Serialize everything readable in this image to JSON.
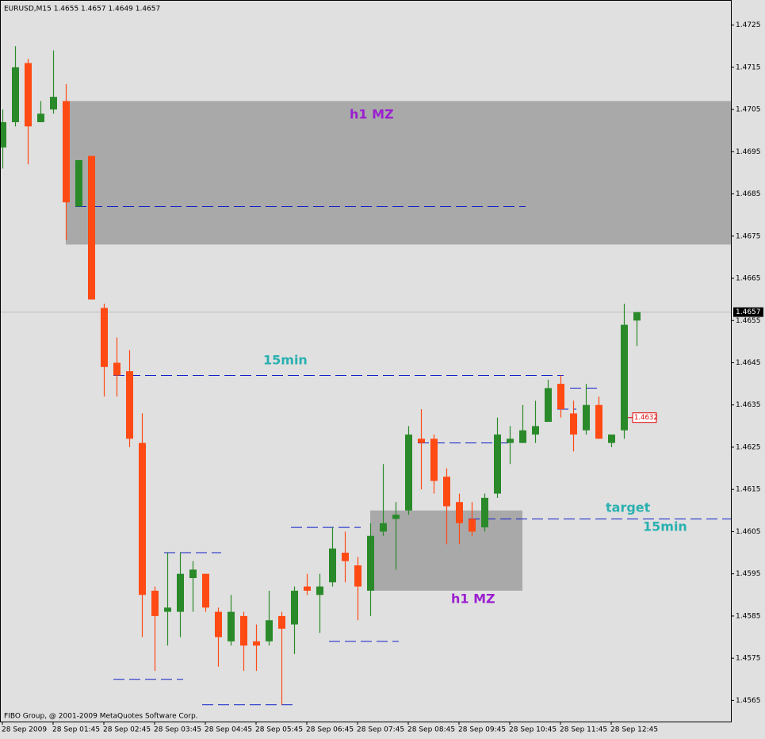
{
  "chart_data": {
    "type": "candlestick",
    "title": "EURUSD,M15  1.4655 1.4657 1.4649 1.4657",
    "copyright": "FIBO Group, @ 2001-2009 MetaQuotes Software Corp.",
    "categories": [
      "28 Sep 2009",
      null,
      null,
      null,
      "28 Sep 01:45",
      null,
      null,
      null,
      "28 Sep 02:45",
      null,
      null,
      null,
      "28 Sep 03:45",
      null,
      null,
      null,
      "28 Sep 04:45",
      null,
      null,
      null,
      "28 Sep 05:45",
      null,
      null,
      null,
      "28 Sep 06:45",
      null,
      null,
      null,
      "28 Sep 07:45",
      null,
      null,
      null,
      "28 Sep 08:45",
      null,
      null,
      null,
      "28 Sep 09:45",
      null,
      null,
      null,
      "28 Sep 10:45",
      null,
      null,
      null,
      "28 Sep 11:45",
      null,
      null,
      null,
      "28 Sep 12:45",
      null,
      null
    ],
    "open": [
      1.4696,
      1.4702,
      1.4716,
      1.4702,
      1.4705,
      1.4707,
      1.4682,
      1.4694,
      1.4658,
      1.4645,
      1.4643,
      1.4626,
      1.4591,
      1.4586,
      1.4586,
      1.4594,
      1.4595,
      1.4586,
      1.4579,
      1.4585,
      1.4579,
      1.4579,
      1.4585,
      1.4583,
      1.4592,
      1.459,
      1.4593,
      1.46,
      1.4597,
      1.4591,
      1.4605,
      1.4608,
      1.461,
      1.4627,
      1.4627,
      1.4618,
      1.4612,
      1.4608,
      1.4606,
      1.4614,
      1.4626,
      1.4626,
      1.4628,
      1.4631,
      1.464,
      1.4633,
      1.4629,
      1.4635,
      1.4626,
      1.4629,
      1.4655
    ],
    "high": [
      1.4705,
      1.472,
      1.4717,
      1.4707,
      1.4719,
      1.4711,
      1.4693,
      1.4694,
      1.4659,
      1.4651,
      1.4648,
      1.4633,
      1.4592,
      1.46,
      1.46,
      1.4598,
      1.4595,
      1.4587,
      1.459,
      1.4586,
      1.4583,
      1.4591,
      1.4586,
      1.4592,
      1.4595,
      1.4595,
      1.4606,
      1.4605,
      1.4599,
      1.4607,
      1.4621,
      1.4612,
      1.463,
      1.4634,
      1.4628,
      1.462,
      1.4614,
      1.4612,
      1.4614,
      1.4632,
      1.463,
      1.4635,
      1.4636,
      1.4641,
      1.4642,
      1.4636,
      1.464,
      1.4637,
      1.4628,
      1.4659,
      1.4657
    ],
    "low": [
      1.4691,
      1.4701,
      1.4692,
      1.4702,
      1.4704,
      1.4674,
      1.4682,
      1.466,
      1.4637,
      1.4637,
      1.4625,
      1.458,
      1.4572,
      1.4578,
      1.458,
      1.4586,
      1.4586,
      1.4573,
      1.4578,
      1.4572,
      1.4572,
      1.4578,
      1.4564,
      1.4576,
      1.459,
      1.4581,
      1.4592,
      1.4593,
      1.4584,
      1.4585,
      1.4604,
      1.4596,
      1.4609,
      1.4615,
      1.4614,
      1.4602,
      1.4602,
      1.4604,
      1.4605,
      1.4613,
      1.4621,
      1.4626,
      1.4626,
      1.4631,
      1.4632,
      1.4624,
      1.4628,
      1.4627,
      1.4625,
      1.4627,
      1.4649
    ],
    "close": [
      1.4702,
      1.4715,
      1.4701,
      1.4704,
      1.4708,
      1.4683,
      1.4693,
      1.466,
      1.4644,
      1.4642,
      1.4627,
      1.459,
      1.4585,
      1.4587,
      1.4595,
      1.4596,
      1.4587,
      1.458,
      1.4586,
      1.4578,
      1.4578,
      1.4584,
      1.4582,
      1.4591,
      1.4591,
      1.4592,
      1.4601,
      1.4598,
      1.4592,
      1.4604,
      1.4607,
      1.4609,
      1.4628,
      1.4626,
      1.4617,
      1.4611,
      1.4607,
      1.4605,
      1.4613,
      1.4628,
      1.4627,
      1.4629,
      1.463,
      1.4639,
      1.4634,
      1.4628,
      1.4635,
      1.4627,
      1.4628,
      1.4654,
      1.4657
    ],
    "up_color": "#2a8a2a",
    "down_color": "#ff4a14",
    "ylim": [
      1.456,
      1.473
    ],
    "yticks": [
      1.4725,
      1.4715,
      1.4705,
      1.4695,
      1.4685,
      1.4675,
      1.4665,
      1.4655,
      1.4645,
      1.4635,
      1.4625,
      1.4615,
      1.4605,
      1.4595,
      1.4585,
      1.4575,
      1.4565
    ],
    "current_price": 1.4657,
    "alert_level": 1.4632,
    "zones": [
      {
        "top": 1.4707,
        "bottom": 1.4673,
        "start": 5
      },
      {
        "top": 1.461,
        "bottom": 1.4591,
        "start": 29,
        "end": 41
      }
    ],
    "levels": [
      {
        "value": 1.4682,
        "start": 6,
        "end": 41
      },
      {
        "value": 1.4642,
        "start": 9,
        "end": 44
      },
      {
        "value": 1.4608,
        "start": 37
      },
      {
        "value": 1.4626,
        "start": 33,
        "end": 40
      },
      {
        "value": 1.46,
        "start": 13,
        "end": 17
      },
      {
        "value": 1.4606,
        "start": 23,
        "end": 28
      },
      {
        "value": 1.4579,
        "start": 26,
        "end": 31
      },
      {
        "value": 1.457,
        "start": 9,
        "end": 14
      },
      {
        "value": 1.4564,
        "start": 16,
        "end": 23
      },
      {
        "value": 1.4634,
        "start": 44,
        "end": 45
      },
      {
        "value": 1.4639,
        "start": 45,
        "end": 47
      }
    ],
    "annotations": [
      {
        "text": "h1 MZ",
        "color": "#9b1fd0"
      },
      {
        "text": "15min",
        "color": "#2ab0b0"
      },
      {
        "text": "target",
        "color": "#2ab0b0"
      },
      {
        "text": "15min",
        "color": "#2ab0b0"
      },
      {
        "text": "h1 MZ",
        "color": "#9b1fd0"
      }
    ]
  }
}
